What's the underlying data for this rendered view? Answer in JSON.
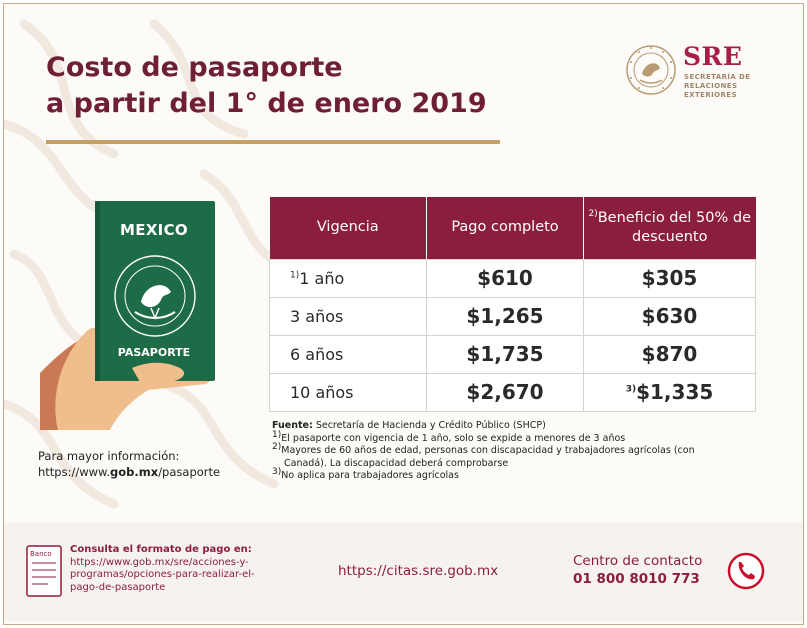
{
  "title": {
    "line1": "Costo de pasaporte",
    "line2": "a partir del 1° de enero 2019"
  },
  "logo": {
    "acronym": "SRE",
    "line1": "SECRETARÍA DE",
    "line2": "RELACIONES",
    "line3": "EXTERIORES"
  },
  "passport": {
    "country": "MEXICO",
    "label": "PASAPORTE",
    "cover_color": "#1e6b47"
  },
  "more_info": {
    "label": "Para mayor información:",
    "url_prefix": "https://www.",
    "url_bold": "gob.mx",
    "url_suffix": "/pasaporte"
  },
  "table": {
    "headers": {
      "vigencia": "Vigencia",
      "pago": "Pago completo",
      "beneficio_note": "2)",
      "beneficio": "Beneficio del 50% de descuento"
    },
    "rows": [
      {
        "note": "1)",
        "vigencia": "1 año",
        "pago": "$610",
        "beneficio_note": "",
        "beneficio": "$305"
      },
      {
        "note": "",
        "vigencia": "3 años",
        "pago": "$1,265",
        "beneficio_note": "",
        "beneficio": "$630"
      },
      {
        "note": "",
        "vigencia": "6 años",
        "pago": "$1,735",
        "beneficio_note": "",
        "beneficio": "$870"
      },
      {
        "note": "",
        "vigencia": "10 años",
        "pago": "$2,670",
        "beneficio_note": "3)",
        "beneficio": "$1,335"
      }
    ],
    "header_color": "#8b1e3f"
  },
  "notes": {
    "source_label": "Fuente:",
    "source_text": "Secretaría de Hacienda y Crédito Público (SHCP)",
    "n1_mark": "1)",
    "n1": "El pasaporte con vigencia de 1 año, solo se expide a menores de 3 años",
    "n2_mark": "2)",
    "n2a": "Mayores de 60 años de edad, personas con discapacidad y trabajadores agrícolas (con",
    "n2b": "Canadá). La discapacidad deberá comprobarse",
    "n3_mark": "3)",
    "n3": "No aplica para trabajadores agrícolas"
  },
  "footer": {
    "bank_word": "Banco",
    "consult_title": "Consulta el formato de pago en:",
    "consult_url1": "https://www.gob.mx/sre/acciones-y-",
    "consult_url2": "programas/opciones-para-realizar-el-",
    "consult_url3": "pago-de-pasaporte",
    "citas_url": "https://citas.sre.gob.mx",
    "contact_label": "Centro de contacto",
    "contact_number": "01 800 8010 773"
  },
  "colors": {
    "brand": "#8b1e3f",
    "gold": "#c3a064",
    "title": "#6e1f34"
  }
}
